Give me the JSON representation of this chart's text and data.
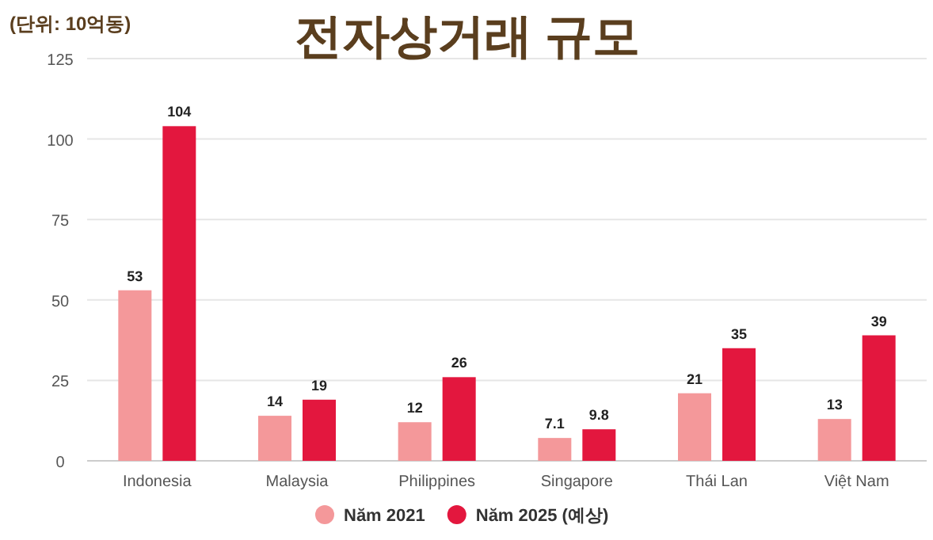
{
  "chart_data": {
    "type": "bar",
    "title": "전자상거래 규모",
    "ylabel": "(단위: 10억동)",
    "categories": [
      "Indonesia",
      "Malaysia",
      "Philippines",
      "Singapore",
      "Thái Lan",
      "Việt Nam"
    ],
    "series": [
      {
        "name": "Năm 2021",
        "color": "#f4989a",
        "values": [
          53,
          14,
          12,
          7.1,
          21,
          13
        ]
      },
      {
        "name": "Năm 2025 (예상)",
        "color": "#e3173e",
        "values": [
          104,
          19,
          26,
          9.8,
          35,
          39
        ]
      }
    ],
    "ylim": [
      0,
      125
    ],
    "yticks": [
      0,
      25,
      50,
      75,
      100,
      125
    ],
    "grid": "y",
    "legend": "bottom",
    "data_labels": true
  }
}
